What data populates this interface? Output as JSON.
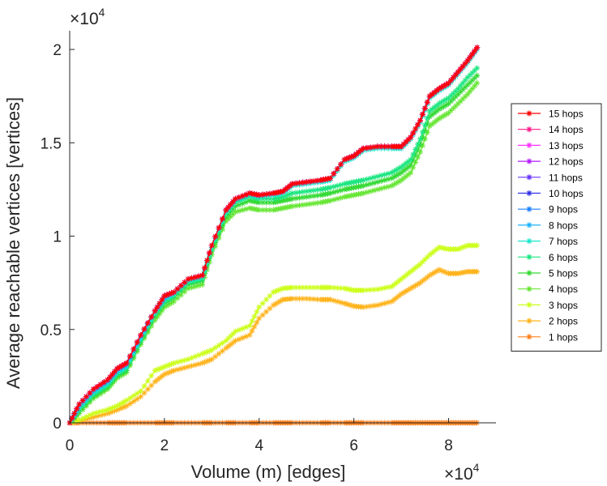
{
  "chart_data": {
    "type": "line",
    "title": "",
    "xlabel": "Volume (m) [edges]",
    "ylabel": "Average reachable vertices [vertices]",
    "x_multiplier": {
      "base": "×10",
      "exponent": "4"
    },
    "y_multiplier": {
      "base": "×10",
      "exponent": "4"
    },
    "xlim": [
      0,
      90000
    ],
    "ylim": [
      0,
      21000
    ],
    "xticks": [
      0,
      20000,
      40000,
      60000,
      80000
    ],
    "xtick_labels": [
      "0",
      "2",
      "4",
      "6",
      "8"
    ],
    "yticks": [
      0,
      5000,
      10000,
      15000,
      20000
    ],
    "ytick_labels": [
      "0",
      "0.5",
      "1",
      "1.5",
      "2"
    ],
    "grid": false,
    "legend_position": "right",
    "marker": "asterisk",
    "x": [
      0,
      2000,
      5000,
      8000,
      10000,
      12000,
      15000,
      18000,
      20000,
      22000,
      25000,
      28000,
      30000,
      33000,
      35000,
      38000,
      40000,
      43000,
      45000,
      47000,
      50000,
      53000,
      55000,
      58000,
      60000,
      62000,
      65000,
      68000,
      70000,
      72000,
      74000,
      76000,
      78000,
      80000,
      82000,
      84000,
      86000
    ],
    "series": [
      {
        "name": "15 hops",
        "color": "#ff0000",
        "values": [
          0,
          1000,
          1800,
          2300,
          2900,
          3200,
          4700,
          6000,
          6800,
          7000,
          7700,
          7900,
          9500,
          11400,
          12000,
          12300,
          12200,
          12300,
          12400,
          12800,
          12900,
          13000,
          13100,
          14100,
          14300,
          14700,
          14800,
          14800,
          14800,
          15300,
          16200,
          17500,
          17900,
          18200,
          18800,
          19400,
          20100
        ]
      },
      {
        "name": "14 hops",
        "color": "#ff1a8c",
        "values": [
          0,
          1000,
          1800,
          2300,
          2900,
          3200,
          4700,
          6000,
          6800,
          7000,
          7700,
          7900,
          9500,
          11400,
          12000,
          12300,
          12200,
          12300,
          12400,
          12800,
          12900,
          13000,
          13100,
          14100,
          14300,
          14700,
          14800,
          14800,
          14800,
          15300,
          16200,
          17500,
          17900,
          18200,
          18800,
          19400,
          20100
        ]
      },
      {
        "name": "13 hops",
        "color": "#ff33ff",
        "values": [
          0,
          1000,
          1800,
          2300,
          2900,
          3200,
          4700,
          6000,
          6800,
          7000,
          7700,
          7900,
          9500,
          11400,
          12000,
          12300,
          12200,
          12300,
          12400,
          12800,
          12900,
          13000,
          13100,
          14100,
          14300,
          14700,
          14800,
          14800,
          14800,
          15300,
          16200,
          17500,
          17900,
          18200,
          18800,
          19400,
          20100
        ]
      },
      {
        "name": "12 hops",
        "color": "#b21aff",
        "values": [
          0,
          1000,
          1800,
          2300,
          2900,
          3200,
          4700,
          6000,
          6800,
          7000,
          7700,
          7900,
          9500,
          11400,
          12000,
          12300,
          12200,
          12300,
          12400,
          12800,
          12900,
          13000,
          13100,
          14100,
          14300,
          14700,
          14800,
          14800,
          14800,
          15300,
          16200,
          17500,
          17900,
          18200,
          18800,
          19400,
          20100
        ]
      },
      {
        "name": "11 hops",
        "color": "#6633ff",
        "values": [
          0,
          1000,
          1800,
          2300,
          2900,
          3200,
          4700,
          6000,
          6800,
          7000,
          7700,
          7900,
          9500,
          11400,
          12000,
          12300,
          12200,
          12300,
          12400,
          12800,
          12900,
          13000,
          13100,
          14100,
          14300,
          14700,
          14800,
          14800,
          14800,
          15300,
          16200,
          17500,
          17900,
          18200,
          18800,
          19400,
          20100
        ]
      },
      {
        "name": "10 hops",
        "color": "#3333e6",
        "values": [
          0,
          1000,
          1800,
          2300,
          2900,
          3200,
          4700,
          6000,
          6800,
          7000,
          7700,
          7900,
          9500,
          11400,
          12000,
          12300,
          12200,
          12300,
          12400,
          12800,
          12900,
          13000,
          13100,
          14100,
          14300,
          14700,
          14800,
          14800,
          14800,
          15300,
          16200,
          17500,
          17900,
          18200,
          18800,
          19400,
          20100
        ]
      },
      {
        "name": "9 hops",
        "color": "#1a80ff",
        "values": [
          0,
          1000,
          1800,
          2300,
          2900,
          3200,
          4700,
          6000,
          6800,
          7000,
          7700,
          7900,
          9500,
          11400,
          12000,
          12300,
          12200,
          12300,
          12400,
          12800,
          12900,
          13000,
          13100,
          14100,
          14300,
          14700,
          14800,
          14800,
          14800,
          15300,
          16200,
          17500,
          17900,
          18200,
          18800,
          19400,
          20100
        ]
      },
      {
        "name": "8 hops",
        "color": "#1ab2ff",
        "values": [
          0,
          900,
          1700,
          2200,
          2800,
          3100,
          4600,
          6000,
          6700,
          7000,
          7700,
          7900,
          9500,
          11400,
          12000,
          12300,
          12200,
          12300,
          12400,
          12800,
          12900,
          13000,
          13100,
          14100,
          14300,
          14700,
          14800,
          14800,
          14800,
          15300,
          16200,
          17500,
          17900,
          18200,
          18800,
          19400,
          20100
        ]
      },
      {
        "name": "7 hops",
        "color": "#1ae6cc",
        "values": [
          0,
          800,
          1600,
          2100,
          2700,
          3000,
          4500,
          5900,
          6600,
          6900,
          7600,
          7800,
          9400,
          11300,
          11900,
          12200,
          12100,
          12200,
          12300,
          12700,
          12800,
          12900,
          13000,
          14000,
          14200,
          14600,
          14700,
          14700,
          14700,
          15200,
          16100,
          17400,
          17800,
          18100,
          18700,
          19300,
          20000
        ]
      },
      {
        "name": "6 hops",
        "color": "#1ae680",
        "values": [
          0,
          700,
          1500,
          2000,
          2600,
          2900,
          4400,
          5800,
          6500,
          6800,
          7500,
          7700,
          9300,
          11200,
          11800,
          12100,
          12000,
          12000,
          12100,
          12300,
          12400,
          12500,
          12600,
          12800,
          12900,
          13000,
          13200,
          13400,
          13700,
          14100,
          15200,
          16700,
          17100,
          17400,
          17900,
          18500,
          19000
        ]
      },
      {
        "name": "5 hops",
        "color": "#33d933",
        "values": [
          0,
          600,
          1400,
          1900,
          2500,
          2800,
          4300,
          5700,
          6400,
          6700,
          7400,
          7600,
          9200,
          11000,
          11600,
          11900,
          11800,
          11800,
          11900,
          12000,
          12100,
          12200,
          12300,
          12500,
          12600,
          12700,
          12900,
          13100,
          13400,
          13800,
          14900,
          16400,
          16800,
          17100,
          17600,
          18100,
          18600
        ]
      },
      {
        "name": "4 hops",
        "color": "#66e633",
        "values": [
          0,
          500,
          1300,
          1800,
          2400,
          2700,
          4200,
          5500,
          6200,
          6500,
          7200,
          7400,
          9000,
          10800,
          11300,
          11500,
          11400,
          11400,
          11500,
          11600,
          11700,
          11800,
          11900,
          12100,
          12200,
          12300,
          12500,
          12700,
          13000,
          13400,
          14500,
          15900,
          16300,
          16600,
          17100,
          17600,
          18200
        ]
      },
      {
        "name": "3 hops",
        "color": "#ccff1a",
        "values": [
          0,
          150,
          500,
          700,
          900,
          1200,
          1700,
          2800,
          3000,
          3200,
          3400,
          3700,
          3900,
          4400,
          4900,
          5200,
          6200,
          7000,
          7200,
          7250,
          7250,
          7250,
          7250,
          7200,
          7100,
          7100,
          7150,
          7300,
          7700,
          8100,
          8500,
          9000,
          9400,
          9300,
          9300,
          9500,
          9500
        ]
      },
      {
        "name": "2 hops",
        "color": "#ffb31a",
        "values": [
          0,
          80,
          300,
          500,
          700,
          900,
          1400,
          2200,
          2600,
          2800,
          3000,
          3200,
          3400,
          4000,
          4400,
          4700,
          5600,
          6300,
          6600,
          6650,
          6650,
          6600,
          6600,
          6400,
          6250,
          6200,
          6300,
          6500,
          6900,
          7200,
          7500,
          7900,
          8200,
          8000,
          8000,
          8100,
          8100
        ]
      },
      {
        "name": "1 hops",
        "color": "#ff801a",
        "values": [
          0,
          0,
          0,
          0,
          0,
          0,
          0,
          0,
          0,
          0,
          0,
          0,
          0,
          0,
          0,
          0,
          0,
          0,
          0,
          0,
          0,
          0,
          0,
          0,
          0,
          0,
          0,
          0,
          0,
          0,
          0,
          0,
          0,
          0,
          0,
          0,
          0
        ]
      }
    ]
  }
}
